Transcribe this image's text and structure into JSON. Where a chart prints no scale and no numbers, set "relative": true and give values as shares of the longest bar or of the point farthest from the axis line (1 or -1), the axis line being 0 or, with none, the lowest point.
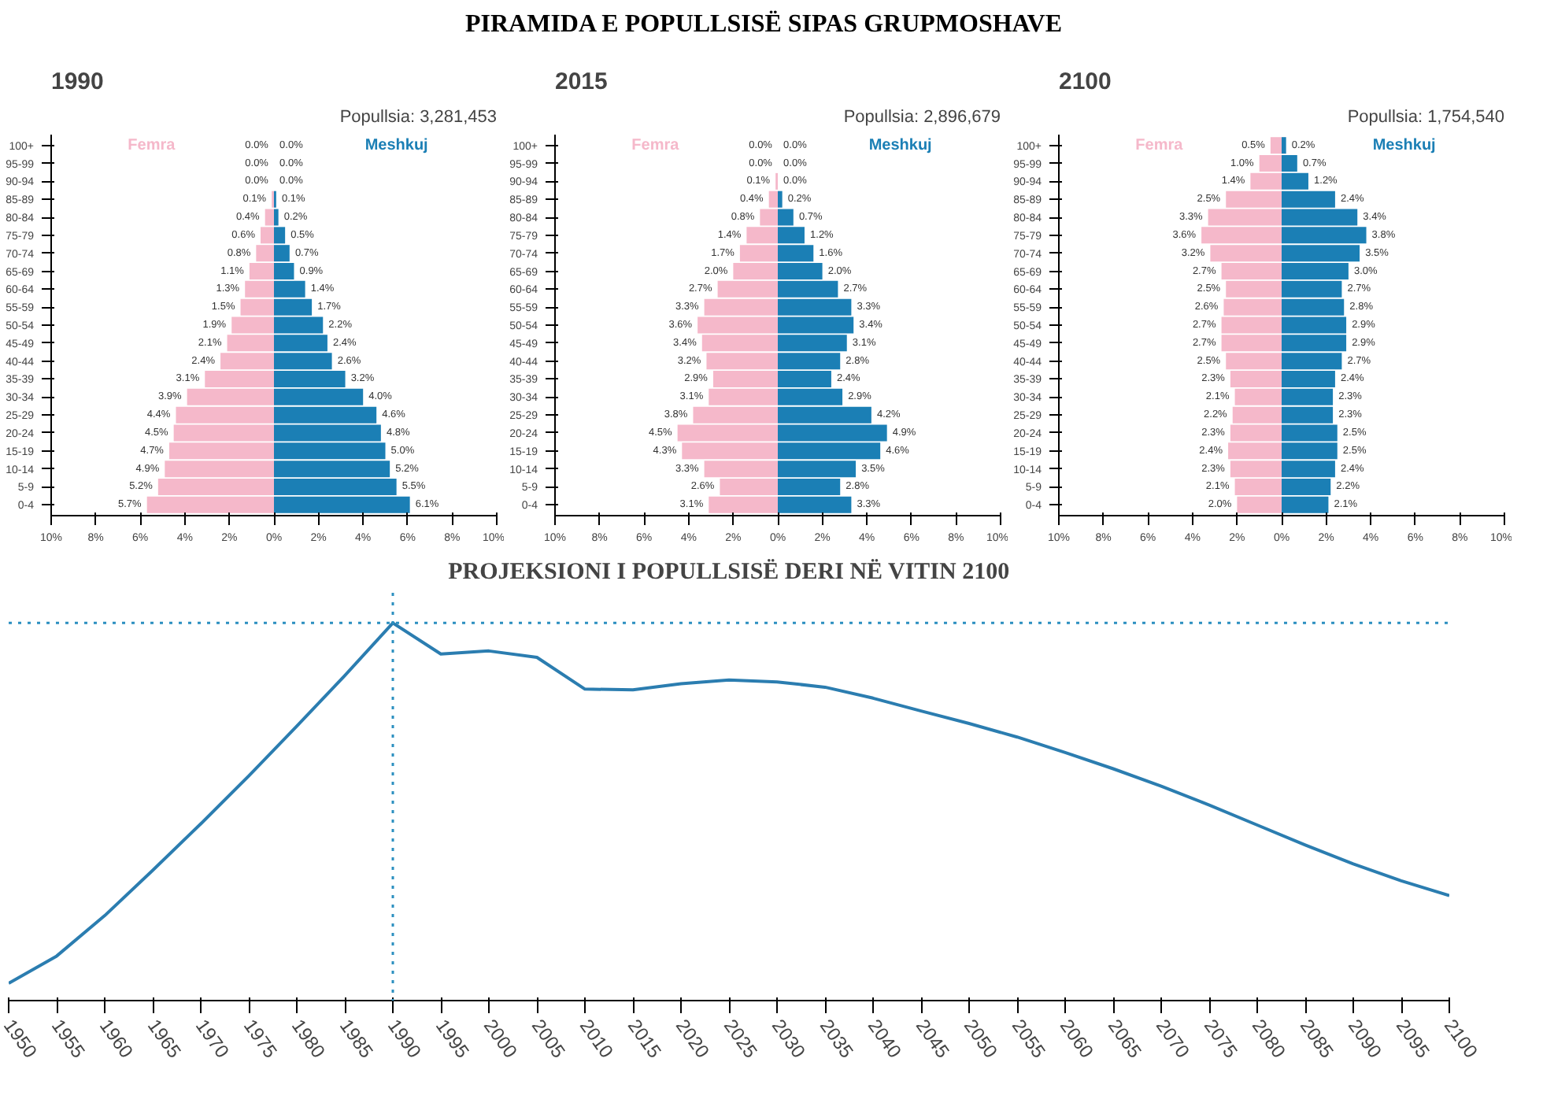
{
  "chart_data": [
    {
      "type": "bar",
      "orientation": "horizontal",
      "title": "1990",
      "subtitle": "Popullsia: 3,281,453",
      "annotations": [
        "PIRAMIDA E POPULLSISË SIPAS GRUPMOSHAVE"
      ],
      "categories": [
        "100+",
        "95-99",
        "90-94",
        "85-89",
        "80-84",
        "75-79",
        "70-74",
        "65-69",
        "60-64",
        "55-59",
        "50-54",
        "45-49",
        "40-44",
        "35-39",
        "30-34",
        "25-29",
        "20-24",
        "15-19",
        "10-14",
        "5-9",
        "0-4"
      ],
      "xlim": [
        -10,
        10
      ],
      "xticks": [
        {
          "value": -10,
          "label": "10%"
        },
        {
          "value": -8,
          "label": "8%"
        },
        {
          "value": -6,
          "label": "6%"
        },
        {
          "value": -4,
          "label": "4%"
        },
        {
          "value": -2,
          "label": "2%"
        },
        {
          "value": 0,
          "label": "0%"
        },
        {
          "value": 2,
          "label": "2%"
        },
        {
          "value": 4,
          "label": "4%"
        },
        {
          "value": 6,
          "label": "6%"
        },
        {
          "value": 8,
          "label": "8%"
        },
        {
          "value": 10,
          "label": "10%"
        }
      ],
      "series": [
        {
          "name": "Femra",
          "color": "#f5b8ca",
          "base": [
            null,
            null,
            null,
            -0.1,
            -0.4,
            -0.6,
            -0.8,
            -1.1,
            -1.3,
            -1.5,
            -1.9,
            -2.1,
            -2.4,
            -3.1,
            -3.9,
            -4.4,
            -4.5,
            -4.7,
            -4.9,
            -5.2,
            -5.7
          ],
          "values": [
            0,
            0,
            0,
            0.1,
            0.4,
            0.6,
            0.8,
            1.1,
            1.3,
            1.5,
            1.9,
            2.1,
            2.4,
            3.1,
            3.9,
            4.4,
            4.5,
            4.7,
            4.9,
            5.2,
            5.7
          ],
          "value_labels": [
            "0.0%",
            "0.0%",
            "0.0%",
            "0.1%",
            "0.4%",
            "0.6%",
            "0.8%",
            "1.1%",
            "1.3%",
            "1.5%",
            "1.9%",
            "2.1%",
            "2.4%",
            "3.1%",
            "3.9%",
            "4.4%",
            "4.5%",
            "4.7%",
            "4.9%",
            "5.2%",
            "5.7%"
          ]
        },
        {
          "name": "Meshkuj",
          "color": "#1b7fb5",
          "values": [
            0,
            0,
            0,
            0.1,
            0.2,
            0.5,
            0.7,
            0.9,
            1.4,
            1.7,
            2.2,
            2.4,
            2.6,
            3.2,
            4.0,
            4.6,
            4.8,
            5.0,
            5.2,
            5.5,
            6.1
          ],
          "value_labels": [
            "0.0%",
            "0.0%",
            "0.0%",
            "0.1%",
            "0.2%",
            "0.5%",
            "0.7%",
            "0.9%",
            "1.4%",
            "1.7%",
            "2.2%",
            "2.4%",
            "2.6%",
            "3.2%",
            "4.0%",
            "4.6%",
            "4.8%",
            "5.0%",
            "5.2%",
            "5.5%",
            "6.1%"
          ]
        }
      ]
    },
    {
      "type": "bar",
      "orientation": "horizontal",
      "title": "2015",
      "subtitle": "Popullsia: 2,896,679",
      "categories": [
        "100+",
        "95-99",
        "90-94",
        "85-89",
        "80-84",
        "75-79",
        "70-74",
        "65-69",
        "60-64",
        "55-59",
        "50-54",
        "45-49",
        "40-44",
        "35-39",
        "30-34",
        "25-29",
        "20-24",
        "15-19",
        "10-14",
        "5-9",
        "0-4"
      ],
      "xlim": [
        -10,
        10
      ],
      "xticks": [
        {
          "value": -10,
          "label": "10%"
        },
        {
          "value": -8,
          "label": "8%"
        },
        {
          "value": -6,
          "label": "6%"
        },
        {
          "value": -4,
          "label": "4%"
        },
        {
          "value": -2,
          "label": "2%"
        },
        {
          "value": 0,
          "label": "0%"
        },
        {
          "value": 2,
          "label": "2%"
        },
        {
          "value": 4,
          "label": "4%"
        },
        {
          "value": 6,
          "label": "6%"
        },
        {
          "value": 8,
          "label": "8%"
        },
        {
          "value": 10,
          "label": "10%"
        }
      ],
      "series": [
        {
          "name": "Femra",
          "color": "#f5b8ca",
          "base": [
            null,
            null,
            -0.1,
            -0.4,
            -0.8,
            -1.4,
            -1.7,
            -2.0,
            -2.7,
            -3.3,
            -3.6,
            -3.4,
            -3.2,
            -2.9,
            -3.1,
            -3.8,
            -4.5,
            -4.3,
            -3.3,
            -2.6,
            -3.1
          ],
          "values": [
            0,
            0,
            0.1,
            0.4,
            0.8,
            1.4,
            1.7,
            2.0,
            2.7,
            3.3,
            3.6,
            3.4,
            3.2,
            2.9,
            3.1,
            3.8,
            4.5,
            4.3,
            3.3,
            2.6,
            3.1
          ],
          "value_labels": [
            "0.0%",
            "0.0%",
            "0.1%",
            "0.4%",
            "0.8%",
            "1.4%",
            "1.7%",
            "2.0%",
            "2.7%",
            "3.3%",
            "3.6%",
            "3.4%",
            "3.2%",
            "2.9%",
            "3.1%",
            "3.8%",
            "4.5%",
            "4.3%",
            "3.3%",
            "2.6%",
            "3.1%"
          ]
        },
        {
          "name": "Meshkuj",
          "color": "#1b7fb5",
          "values": [
            0,
            0,
            0,
            0.2,
            0.7,
            1.2,
            1.6,
            2.0,
            2.7,
            3.3,
            3.4,
            3.1,
            2.8,
            2.4,
            2.9,
            4.2,
            4.9,
            4.6,
            3.5,
            2.8,
            3.3
          ],
          "value_labels": [
            "0.0%",
            "0.0%",
            "0.0%",
            "0.2%",
            "0.7%",
            "1.2%",
            "1.6%",
            "2.0%",
            "2.7%",
            "3.3%",
            "3.4%",
            "3.1%",
            "2.8%",
            "2.4%",
            "2.9%",
            "4.2%",
            "4.9%",
            "4.6%",
            "3.5%",
            "2.8%",
            "3.3%"
          ]
        }
      ]
    },
    {
      "type": "bar",
      "orientation": "horizontal",
      "title": "2100",
      "subtitle": "Popullsia: 1,754,540",
      "categories": [
        "100+",
        "95-99",
        "90-94",
        "85-89",
        "80-84",
        "75-79",
        "70-74",
        "65-69",
        "60-64",
        "55-59",
        "50-54",
        "45-49",
        "40-44",
        "35-39",
        "30-34",
        "25-29",
        "20-24",
        "15-19",
        "10-14",
        "5-9",
        "0-4"
      ],
      "xlim": [
        -10,
        10
      ],
      "xticks": [
        {
          "value": -10,
          "label": "10%"
        },
        {
          "value": -8,
          "label": "8%"
        },
        {
          "value": -6,
          "label": "6%"
        },
        {
          "value": -4,
          "label": "4%"
        },
        {
          "value": -2,
          "label": "2%"
        },
        {
          "value": 0,
          "label": "0%"
        },
        {
          "value": 2,
          "label": "2%"
        },
        {
          "value": 4,
          "label": "4%"
        },
        {
          "value": 6,
          "label": "6%"
        },
        {
          "value": 8,
          "label": "8%"
        },
        {
          "value": 10,
          "label": "10%"
        }
      ],
      "series": [
        {
          "name": "Femra",
          "color": "#f5b8ca",
          "base": [
            -0.5,
            -1.0,
            -1.4,
            -2.5,
            -3.3,
            -3.6,
            -3.2,
            -2.7,
            -2.5,
            -2.6,
            -2.7,
            -2.7,
            -2.5,
            -2.3,
            -2.1,
            -2.2,
            -2.3,
            -2.4,
            -2.3,
            -2.1,
            -2.0
          ],
          "values": [
            0.5,
            1.0,
            1.4,
            2.5,
            3.3,
            3.6,
            3.2,
            2.7,
            2.5,
            2.6,
            2.7,
            2.7,
            2.5,
            2.3,
            2.1,
            2.2,
            2.3,
            2.4,
            2.3,
            2.1,
            2.0
          ],
          "value_labels": [
            "0.5%",
            "1.0%",
            "1.4%",
            "2.5%",
            "3.3%",
            "3.6%",
            "3.2%",
            "2.7%",
            "2.5%",
            "2.6%",
            "2.7%",
            "2.7%",
            "2.5%",
            "2.3%",
            "2.1%",
            "2.2%",
            "2.3%",
            "2.4%",
            "2.3%",
            "2.1%",
            "2.0%"
          ]
        },
        {
          "name": "Meshkuj",
          "color": "#1b7fb5",
          "values": [
            0.2,
            0.7,
            1.2,
            2.4,
            3.4,
            3.8,
            3.5,
            3.0,
            2.7,
            2.8,
            2.9,
            2.9,
            2.7,
            2.4,
            2.3,
            2.3,
            2.5,
            2.5,
            2.4,
            2.2,
            2.1
          ],
          "value_labels": [
            "0.2%",
            "0.7%",
            "1.2%",
            "2.4%",
            "3.4%",
            "3.8%",
            "3.5%",
            "3.0%",
            "2.7%",
            "2.8%",
            "2.9%",
            "2.9%",
            "2.7%",
            "2.4%",
            "2.3%",
            "2.3%",
            "2.5%",
            "2.5%",
            "2.4%",
            "2.2%",
            "2.1%"
          ]
        }
      ]
    },
    {
      "type": "line",
      "title": "PROJEKSIONI I POPULLSISË DERI NË VITIN 2100",
      "relative": true,
      "x": [
        1950,
        1955,
        1960,
        1965,
        1970,
        1975,
        1980,
        1985,
        1990,
        1995,
        2000,
        2005,
        2010,
        2015,
        2020,
        2025,
        2030,
        2035,
        2040,
        2045,
        2050,
        2055,
        2060,
        2065,
        2070,
        2075,
        2080,
        2085,
        2090,
        2095,
        2100
      ],
      "xlim": [
        1950,
        2100
      ],
      "xticks": [
        1950,
        1955,
        1960,
        1965,
        1970,
        1975,
        1980,
        1985,
        1990,
        1995,
        2000,
        2005,
        2010,
        2015,
        2020,
        2025,
        2030,
        2035,
        2040,
        2045,
        2050,
        2055,
        2060,
        2065,
        2070,
        2075,
        2080,
        2085,
        2090,
        2095,
        2100
      ],
      "series": [
        {
          "color": "#2b7db0",
          "values": [
            0.046,
            0.118,
            0.225,
            0.345,
            0.468,
            0.595,
            0.727,
            0.861,
            1,
            0.918,
            0.926,
            0.909,
            0.825,
            0.823,
            0.839,
            0.849,
            0.844,
            0.83,
            0.801,
            0.767,
            0.734,
            0.698,
            0.657,
            0.614,
            0.568,
            0.518,
            0.465,
            0.412,
            0.362,
            0.317,
            0.278
          ]
        }
      ],
      "ref_lines": [
        {
          "axis": "x",
          "value": 1990,
          "color": "#2b8fc0",
          "line_style": "dotted"
        },
        {
          "axis": "y",
          "value": 1,
          "color": "#2b8fc0",
          "line_style": "dotted"
        }
      ]
    }
  ]
}
